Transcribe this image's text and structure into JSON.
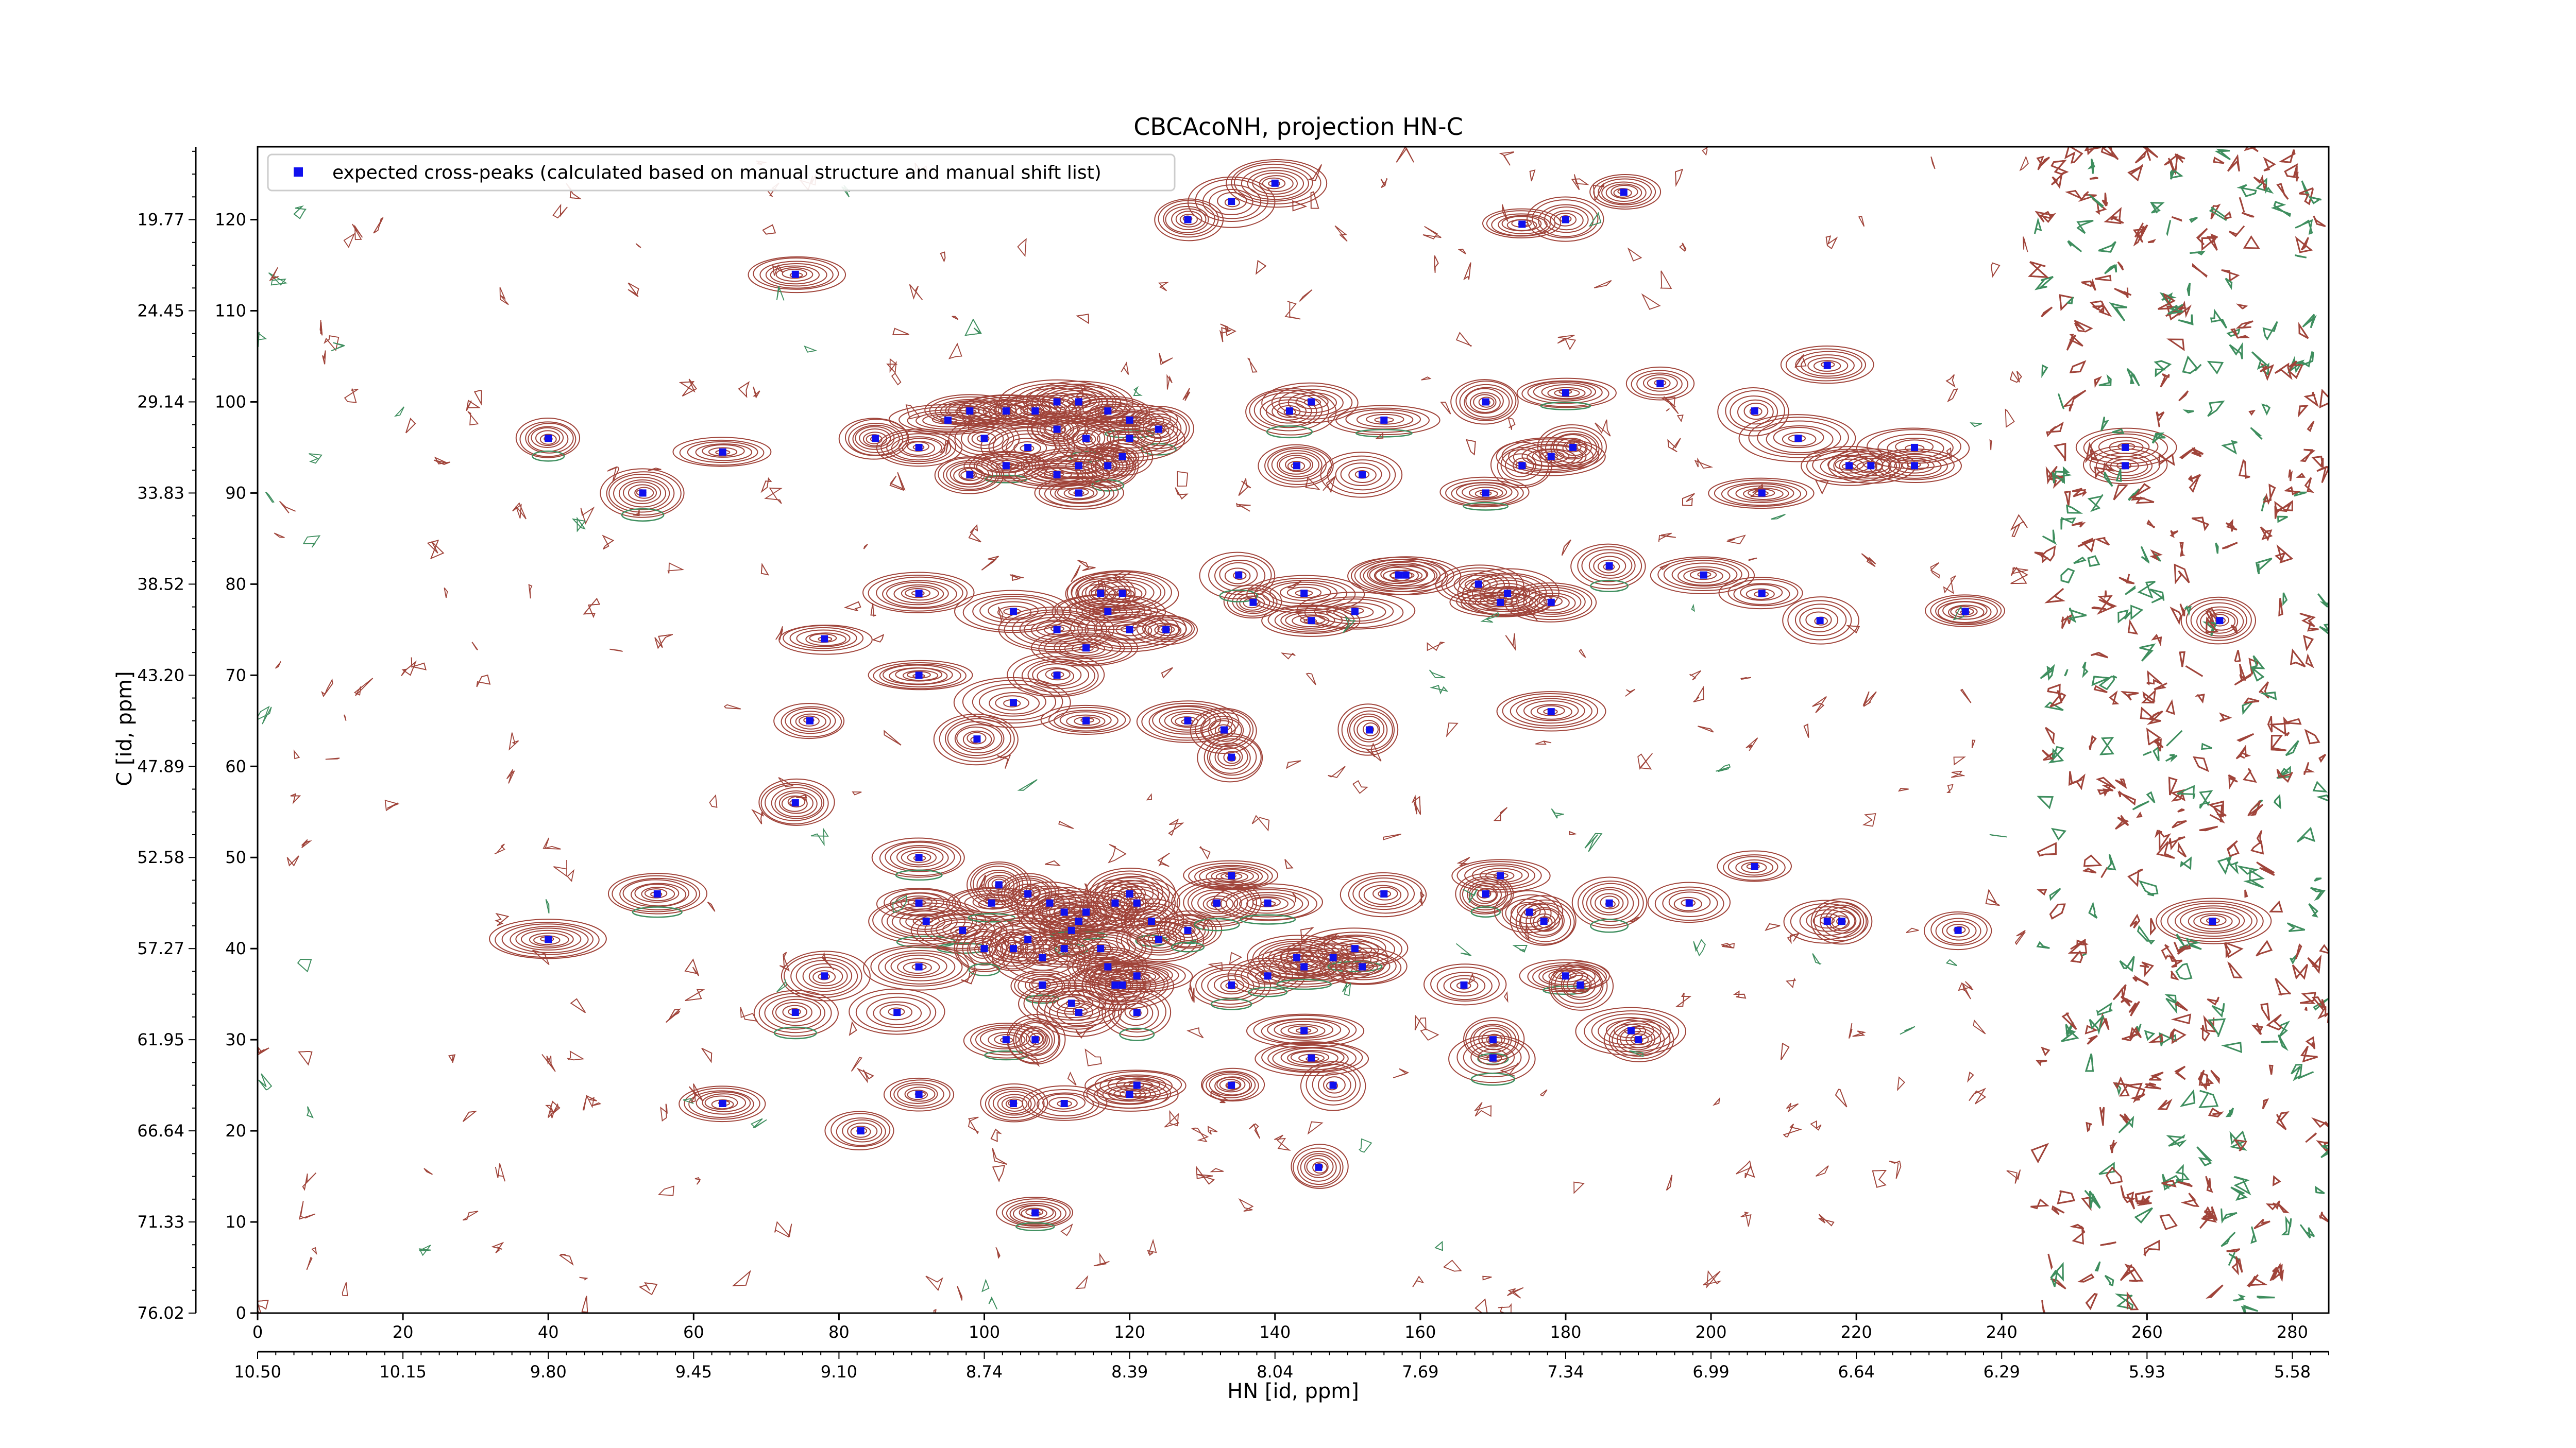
{
  "chart_data": {
    "type": "scatter",
    "title": "CBCAcoNH, projection HN-C",
    "xlabel": "HN [id, ppm]",
    "ylabel": "C [id, ppm]",
    "x_index_range": [
      0,
      285
    ],
    "y_index_range": [
      0,
      128
    ],
    "x_index_ticks": [
      "0",
      "20",
      "40",
      "60",
      "80",
      "100",
      "120",
      "140",
      "160",
      "180",
      "200",
      "220",
      "240",
      "260",
      "280"
    ],
    "y_index_ticks": [
      "0",
      "10",
      "20",
      "30",
      "40",
      "50",
      "60",
      "70",
      "80",
      "90",
      "100",
      "110",
      "120"
    ],
    "x_ppm_ticks": [
      {
        "pos": 0,
        "label": "10.50"
      },
      {
        "pos": 20,
        "label": "10.15"
      },
      {
        "pos": 40,
        "label": "9.80"
      },
      {
        "pos": 60,
        "label": "9.45"
      },
      {
        "pos": 80,
        "label": "9.10"
      },
      {
        "pos": 100,
        "label": "8.74"
      },
      {
        "pos": 120,
        "label": "8.39"
      },
      {
        "pos": 140,
        "label": "8.04"
      },
      {
        "pos": 160,
        "label": "7.69"
      },
      {
        "pos": 180,
        "label": "7.34"
      },
      {
        "pos": 200,
        "label": "6.99"
      },
      {
        "pos": 220,
        "label": "6.64"
      },
      {
        "pos": 240,
        "label": "6.29"
      },
      {
        "pos": 260,
        "label": "5.93"
      },
      {
        "pos": 280,
        "label": "5.58"
      }
    ],
    "y_ppm_ticks": [
      {
        "pos": 0,
        "label": "76.02"
      },
      {
        "pos": 10,
        "label": "71.33"
      },
      {
        "pos": 20,
        "label": "66.64"
      },
      {
        "pos": 30,
        "label": "61.95"
      },
      {
        "pos": 40,
        "label": "57.27"
      },
      {
        "pos": 50,
        "label": "52.58"
      },
      {
        "pos": 60,
        "label": "47.89"
      },
      {
        "pos": 70,
        "label": "43.20"
      },
      {
        "pos": 80,
        "label": "38.52"
      },
      {
        "pos": 90,
        "label": "33.83"
      },
      {
        "pos": 100,
        "label": "29.14"
      },
      {
        "pos": 110,
        "label": "24.45"
      },
      {
        "pos": 120,
        "label": "19.77"
      }
    ],
    "legend": {
      "position": "top-left",
      "label": "expected cross-peaks (calculated based on manual structure and manual shift list)"
    },
    "colors": {
      "positive_contour": "#a0443a",
      "negative_contour": "#3e8e5e",
      "marker": "#1010ee"
    },
    "series": [
      {
        "name": "expected cross-peaks (calculated based on manual structure and manual shift list)",
        "points": [
          [
            74,
            114
          ],
          [
            40,
            96
          ],
          [
            53,
            90
          ],
          [
            64,
            94.5
          ],
          [
            134,
            122
          ],
          [
            128,
            120
          ],
          [
            140,
            124
          ],
          [
            180,
            120
          ],
          [
            174,
            119.5
          ],
          [
            188,
            123
          ],
          [
            91,
            95
          ],
          [
            95,
            98
          ],
          [
            98,
            99
          ],
          [
            103,
            99
          ],
          [
            107,
            99
          ],
          [
            110,
            100
          ],
          [
            113,
            100
          ],
          [
            117,
            99
          ],
          [
            120,
            98
          ],
          [
            124,
            97
          ],
          [
            110,
            97
          ],
          [
            114,
            96
          ],
          [
            106,
            95
          ],
          [
            100,
            96
          ],
          [
            103,
            93
          ],
          [
            110,
            92
          ],
          [
            113,
            93
          ],
          [
            117,
            93
          ],
          [
            98,
            92
          ],
          [
            119,
            94
          ],
          [
            120,
            96
          ],
          [
            113,
            90
          ],
          [
            85,
            96
          ],
          [
            142,
            99
          ],
          [
            145,
            100
          ],
          [
            155,
            98
          ],
          [
            152,
            92
          ],
          [
            143,
            93
          ],
          [
            169,
            100
          ],
          [
            169,
            90
          ],
          [
            174,
            93
          ],
          [
            178,
            94
          ],
          [
            181,
            95
          ],
          [
            180,
            101
          ],
          [
            193,
            102
          ],
          [
            206,
            99
          ],
          [
            207,
            90
          ],
          [
            212,
            96
          ],
          [
            216,
            104
          ],
          [
            219,
            93
          ],
          [
            222,
            93
          ],
          [
            228,
            93
          ],
          [
            228,
            95
          ],
          [
            257,
            95
          ],
          [
            257,
            93
          ],
          [
            270,
            76
          ],
          [
            91,
            79
          ],
          [
            104,
            77
          ],
          [
            117,
            77
          ],
          [
            120,
            75
          ],
          [
            110,
            75
          ],
          [
            114,
            73
          ],
          [
            116,
            79
          ],
          [
            119,
            79
          ],
          [
            125,
            75
          ],
          [
            137,
            78
          ],
          [
            135,
            81
          ],
          [
            144,
            79
          ],
          [
            145,
            76
          ],
          [
            151,
            77
          ],
          [
            157,
            81
          ],
          [
            158,
            81
          ],
          [
            168,
            80
          ],
          [
            171,
            78
          ],
          [
            172,
            79
          ],
          [
            178,
            78
          ],
          [
            186,
            82
          ],
          [
            199,
            81
          ],
          [
            207,
            79
          ],
          [
            215,
            76
          ],
          [
            235,
            77
          ],
          [
            78,
            74
          ],
          [
            91,
            70
          ],
          [
            110,
            70
          ],
          [
            104,
            67
          ],
          [
            99,
            63
          ],
          [
            114,
            65
          ],
          [
            128,
            65
          ],
          [
            133,
            64
          ],
          [
            134,
            61
          ],
          [
            153,
            64
          ],
          [
            178,
            66
          ],
          [
            74,
            56
          ],
          [
            91,
            50
          ],
          [
            102,
            47
          ],
          [
            91,
            45
          ],
          [
            92,
            43
          ],
          [
            97,
            42
          ],
          [
            101,
            45
          ],
          [
            106,
            46
          ],
          [
            109,
            45
          ],
          [
            111,
            44
          ],
          [
            112,
            42
          ],
          [
            113,
            43
          ],
          [
            114,
            44
          ],
          [
            118,
            45
          ],
          [
            120,
            46
          ],
          [
            121,
            45
          ],
          [
            123,
            43
          ],
          [
            124,
            41
          ],
          [
            106,
            41
          ],
          [
            104,
            40
          ],
          [
            108,
            39
          ],
          [
            111,
            40
          ],
          [
            116,
            40
          ],
          [
            117,
            38
          ],
          [
            119,
            36
          ],
          [
            121,
            37
          ],
          [
            91,
            38
          ],
          [
            100,
            40
          ],
          [
            118,
            36
          ],
          [
            108,
            36
          ],
          [
            112,
            34
          ],
          [
            128,
            42
          ],
          [
            132,
            45
          ],
          [
            134,
            48
          ],
          [
            139,
            45
          ],
          [
            134,
            36
          ],
          [
            139,
            37
          ],
          [
            143,
            39
          ],
          [
            144,
            38
          ],
          [
            148,
            39
          ],
          [
            151,
            40
          ],
          [
            152,
            38
          ],
          [
            155,
            46
          ],
          [
            166,
            36
          ],
          [
            169,
            46
          ],
          [
            171,
            48
          ],
          [
            175,
            44
          ],
          [
            177,
            43
          ],
          [
            180,
            37
          ],
          [
            182,
            36
          ],
          [
            186,
            45
          ],
          [
            189,
            31
          ],
          [
            190,
            30
          ],
          [
            197,
            45
          ],
          [
            206,
            49
          ],
          [
            216,
            43
          ],
          [
            218,
            43
          ],
          [
            234,
            42
          ],
          [
            269,
            43
          ],
          [
            55,
            46
          ],
          [
            40,
            41
          ],
          [
            78,
            37
          ],
          [
            74,
            33
          ],
          [
            103,
            30
          ],
          [
            107,
            30
          ],
          [
            113,
            33
          ],
          [
            121,
            33
          ],
          [
            134,
            25
          ],
          [
            144,
            31
          ],
          [
            145,
            28
          ],
          [
            148,
            25
          ],
          [
            170,
            30
          ],
          [
            170,
            28
          ],
          [
            91,
            24
          ],
          [
            104,
            23
          ],
          [
            111,
            23
          ],
          [
            120,
            24
          ],
          [
            121,
            25
          ],
          [
            83,
            20
          ],
          [
            146,
            16
          ],
          [
            107,
            11
          ],
          [
            64,
            23
          ],
          [
            88,
            33
          ],
          [
            76,
            65
          ]
        ]
      }
    ]
  }
}
